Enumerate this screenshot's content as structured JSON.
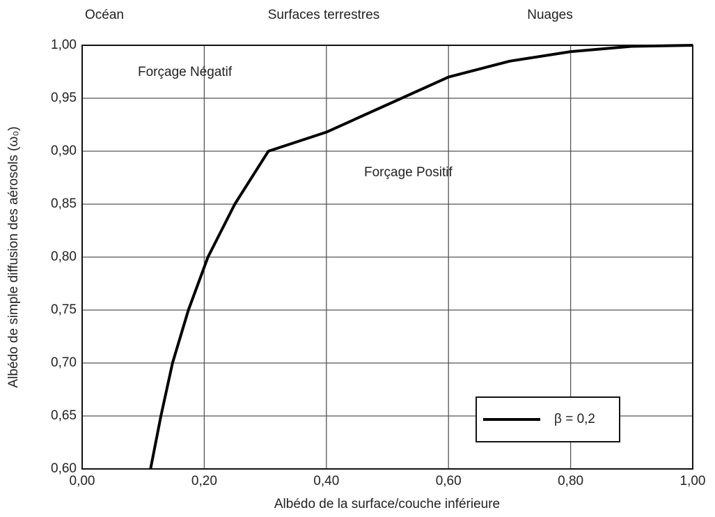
{
  "chart_data": {
    "type": "line",
    "x_label": "Albédo de la surface/couche inférieure",
    "y_label": "Albédo de simple diffusion des aérosols (ω₀)",
    "region_labels": [
      "Océan",
      "Surfaces terrestres",
      "Nuages"
    ],
    "annotations": [
      "Forçage Négatif",
      "Forçage Positif"
    ],
    "x": [
      0.112,
      0.129,
      0.148,
      0.174,
      0.206,
      0.25,
      0.305,
      0.4,
      0.5,
      0.6,
      0.7,
      0.8,
      0.9,
      1.0
    ],
    "series": [
      {
        "name": "β = 0,2",
        "color": "#000000",
        "values": [
          0.6,
          0.65,
          0.7,
          0.75,
          0.8,
          0.85,
          0.9,
          0.918,
          0.944,
          0.97,
          0.985,
          0.994,
          0.999,
          1.0
        ]
      }
    ],
    "xlim": [
      0,
      1
    ],
    "ylim": [
      0.6,
      1.0
    ],
    "xticks": [
      {
        "value": 0,
        "label": "0,00"
      },
      {
        "value": 0.2,
        "label": "0,20"
      },
      {
        "value": 0.4,
        "label": "0,40"
      },
      {
        "value": 0.6,
        "label": "0,60"
      },
      {
        "value": 0.8,
        "label": "0,80"
      },
      {
        "value": 1,
        "label": "1,00"
      }
    ],
    "yticks": [
      {
        "value": 0.6,
        "label": "0,60"
      },
      {
        "value": 0.65,
        "label": "0,65"
      },
      {
        "value": 0.7,
        "label": "0,70"
      },
      {
        "value": 0.75,
        "label": "0,75"
      },
      {
        "value": 0.8,
        "label": "0,80"
      },
      {
        "value": 0.85,
        "label": "0,85"
      },
      {
        "value": 0.9,
        "label": "0,90"
      },
      {
        "value": 0.95,
        "label": "0,95"
      },
      {
        "value": 1.0,
        "label": "1,00"
      }
    ],
    "grid": true,
    "legend": "lower right"
  }
}
